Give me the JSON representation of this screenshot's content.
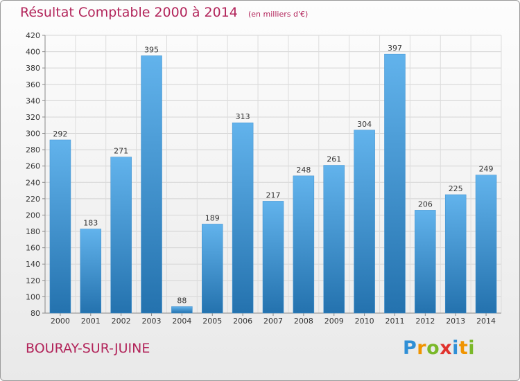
{
  "header": {
    "title": "Résultat Comptable 2000 à 2014",
    "subtitle": "(en milliers d'€)"
  },
  "footer": {
    "commune": "BOURAY-SUR-JUINE",
    "brand": "Proxiti"
  },
  "colors": {
    "title": "#b2245a",
    "bar_light": "#62b3ec",
    "bar_dark": "#2472ae"
  },
  "brand_letters": [
    {
      "ch": "P",
      "color": "#2f8fd6"
    },
    {
      "ch": "r",
      "color": "#f09400"
    },
    {
      "ch": "o",
      "color": "#7ab829"
    },
    {
      "ch": "x",
      "color": "#e0322d"
    },
    {
      "ch": "i",
      "color": "#2f8fd6"
    },
    {
      "ch": "t",
      "color": "#f09400"
    },
    {
      "ch": "i",
      "color": "#7ab829"
    }
  ],
  "chart_data": {
    "type": "bar",
    "title": "Résultat Comptable 2000 à 2014",
    "subtitle": "(en milliers d'€)",
    "xlabel": "",
    "ylabel": "",
    "categories": [
      "2000",
      "2001",
      "2002",
      "2003",
      "2004",
      "2005",
      "2006",
      "2007",
      "2008",
      "2009",
      "2010",
      "2011",
      "2012",
      "2013",
      "2014"
    ],
    "values": [
      292,
      183,
      271,
      395,
      88,
      189,
      313,
      217,
      248,
      261,
      304,
      397,
      206,
      225,
      249
    ],
    "ylim": [
      80,
      420
    ],
    "yticks": [
      80,
      100,
      120,
      140,
      160,
      180,
      200,
      220,
      240,
      260,
      280,
      300,
      320,
      340,
      360,
      380,
      400,
      420
    ],
    "grid": true,
    "legend": "none"
  }
}
